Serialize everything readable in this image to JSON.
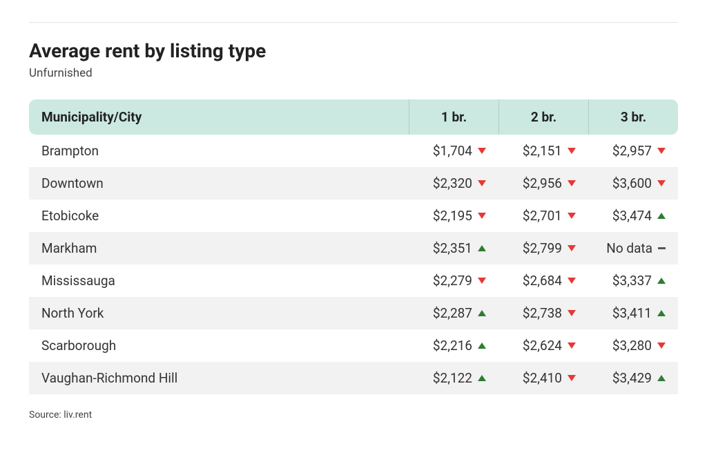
{
  "title": "Average rent by listing type",
  "subtitle": "Unfurnished",
  "source": "Source: liv.rent",
  "table": {
    "type": "table",
    "header_bg": "#cbe9e1",
    "row_alt_bg": "#f2f2f2",
    "row_bg": "#ffffff",
    "up_color": "#2e7d32",
    "down_color": "#e53935",
    "dash_color": "#555555",
    "columns": [
      "Municipality/City",
      "1 br.",
      "2 br.",
      "3 br."
    ],
    "rows": [
      {
        "name": "Brampton",
        "cells": [
          {
            "value": "$1,704",
            "trend": "down"
          },
          {
            "value": "$2,151",
            "trend": "down"
          },
          {
            "value": "$2,957",
            "trend": "down"
          }
        ]
      },
      {
        "name": "Downtown",
        "cells": [
          {
            "value": "$2,320",
            "trend": "down"
          },
          {
            "value": "$2,956",
            "trend": "down"
          },
          {
            "value": "$3,600",
            "trend": "down"
          }
        ]
      },
      {
        "name": "Etobicoke",
        "cells": [
          {
            "value": "$2,195",
            "trend": "down"
          },
          {
            "value": "$2,701",
            "trend": "down"
          },
          {
            "value": "$3,474",
            "trend": "up"
          }
        ]
      },
      {
        "name": "Markham",
        "cells": [
          {
            "value": "$2,351",
            "trend": "up"
          },
          {
            "value": "$2,799",
            "trend": "down"
          },
          {
            "value": "No data",
            "trend": "none"
          }
        ]
      },
      {
        "name": "Mississauga",
        "cells": [
          {
            "value": "$2,279",
            "trend": "down"
          },
          {
            "value": "$2,684",
            "trend": "down"
          },
          {
            "value": "$3,337",
            "trend": "up"
          }
        ]
      },
      {
        "name": "North York",
        "cells": [
          {
            "value": "$2,287",
            "trend": "up"
          },
          {
            "value": "$2,738",
            "trend": "down"
          },
          {
            "value": "$3,411",
            "trend": "up"
          }
        ]
      },
      {
        "name": "Scarborough",
        "cells": [
          {
            "value": "$2,216",
            "trend": "up"
          },
          {
            "value": "$2,624",
            "trend": "down"
          },
          {
            "value": "$3,280",
            "trend": "down"
          }
        ]
      },
      {
        "name": "Vaughan-Richmond Hill",
        "cells": [
          {
            "value": "$2,122",
            "trend": "up"
          },
          {
            "value": "$2,410",
            "trend": "down"
          },
          {
            "value": "$3,429",
            "trend": "up"
          }
        ]
      }
    ]
  }
}
